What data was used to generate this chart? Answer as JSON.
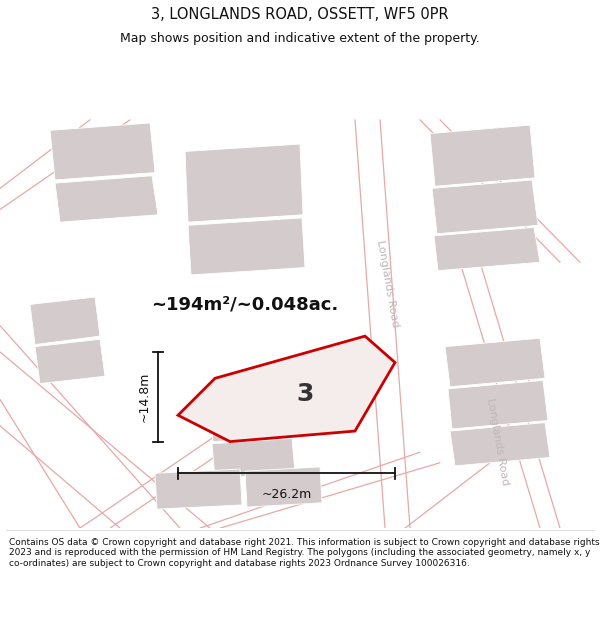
{
  "title": "3, LONGLANDS ROAD, OSSETT, WF5 0PR",
  "subtitle": "Map shows position and indicative extent of the property.",
  "area_text": "~194m²/~0.048ac.",
  "width_text": "~26.2m",
  "height_text": "~14.8m",
  "plot_number": "3",
  "footer_text": "Contains OS data © Crown copyright and database right 2021. This information is subject to Crown copyright and database rights 2023 and is reproduced with the permission of HM Land Registry. The polygons (including the associated geometry, namely x, y co-ordinates) are subject to Crown copyright and database rights 2023 Ordnance Survey 100026316.",
  "map_bg": "#f9f7f7",
  "building_color": "#d4cccc",
  "road_line_color": "#e8a8a8",
  "plot_fill": "#f5ecec",
  "plot_edge": "#cc0000",
  "dim_color": "#111111",
  "road_label_color": "#c0b8b8",
  "road_label_top": "Longlands Road",
  "road_label_bottom": "Longlands Road",
  "title_fontsize": 10.5,
  "subtitle_fontsize": 9,
  "footer_fontsize": 6.5
}
